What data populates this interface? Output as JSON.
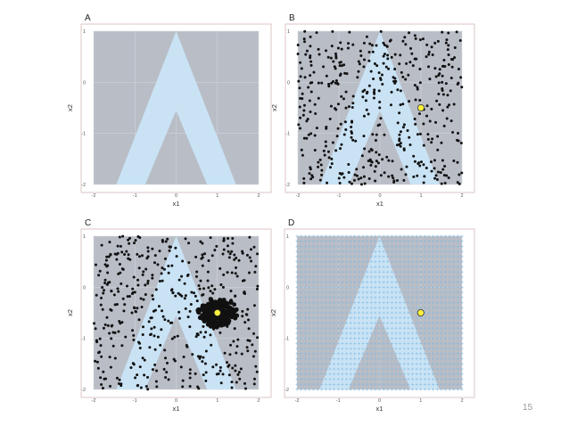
{
  "slide": {
    "page_number": "15"
  },
  "colors": {
    "panel_bg": "#b9bdc6",
    "band": "#c9e3f5",
    "point": "#111111",
    "highlight": "#fff23a",
    "grid_marker": "#7fb9e0",
    "axis_text": "#555555"
  },
  "chart_data": [
    {
      "panel": "A",
      "type": "scatter",
      "xlabel": "x1",
      "ylabel": "x2",
      "xlim": [
        -2,
        2
      ],
      "ylim": [
        -2,
        1
      ],
      "xticks": [
        "-2",
        "-1",
        "0",
        "1",
        "2"
      ],
      "yticks": [
        "-2",
        "-1",
        "0",
        "1"
      ],
      "grid": true,
      "band": {
        "shape": "inverted-V",
        "apex": [
          0,
          1
        ],
        "outer_base": [
          -1.45,
          1.45
        ],
        "inner_base": [
          -0.75,
          0.75
        ]
      },
      "points": "none"
    },
    {
      "panel": "B",
      "type": "scatter",
      "xlabel": "x1",
      "ylabel": "x2",
      "xlim": [
        -2,
        2
      ],
      "ylim": [
        -2,
        1
      ],
      "xticks": [
        "-2",
        "-1",
        "0",
        "1",
        "2"
      ],
      "yticks": [
        "-2",
        "-1",
        "0",
        "1"
      ],
      "grid": true,
      "band": {
        "shape": "inverted-V",
        "apex": [
          0,
          1
        ],
        "outer_base": [
          -1.45,
          1.45
        ],
        "inner_base": [
          -0.75,
          0.75
        ]
      },
      "points": "uniform random sample, ~450 points",
      "sample_count": 450,
      "highlight_point": {
        "x": 1.0,
        "y": -0.5
      }
    },
    {
      "panel": "C",
      "type": "scatter",
      "xlabel": "x1",
      "ylabel": "x2",
      "xlim": [
        -2,
        2
      ],
      "ylim": [
        -2,
        1
      ],
      "xticks": [
        "-2",
        "-1",
        "0",
        "1",
        "2"
      ],
      "yticks": [
        "-2",
        "-1",
        "0",
        "1"
      ],
      "grid": true,
      "band": {
        "shape": "inverted-V",
        "apex": [
          0,
          1
        ],
        "outer_base": [
          -1.45,
          1.45
        ],
        "inner_base": [
          -0.75,
          0.75
        ]
      },
      "points": "random sample with larger markers near highlight point",
      "sample_count": 450,
      "cluster": {
        "center": [
          1.0,
          -0.5
        ],
        "count": 110
      },
      "highlight_point": {
        "x": 1.0,
        "y": -0.5
      }
    },
    {
      "panel": "D",
      "type": "scatter",
      "xlabel": "x1",
      "ylabel": "x2",
      "xlim": [
        -2,
        2
      ],
      "ylim": [
        -2,
        1
      ],
      "xticks": [
        "-2",
        "-1",
        "0",
        "1",
        "2"
      ],
      "yticks": [
        "-2",
        "-1",
        "0",
        "1"
      ],
      "grid": true,
      "band": {
        "shape": "inverted-V",
        "apex": [
          0,
          1
        ],
        "outer_base": [
          -1.45,
          1.45
        ],
        "inner_base": [
          -0.75,
          0.75
        ]
      },
      "points": "regular grid of small plus markers",
      "grid_markers": {
        "nx": 41,
        "ny": 31
      },
      "highlight_point": {
        "x": 1.0,
        "y": -0.5
      }
    }
  ]
}
